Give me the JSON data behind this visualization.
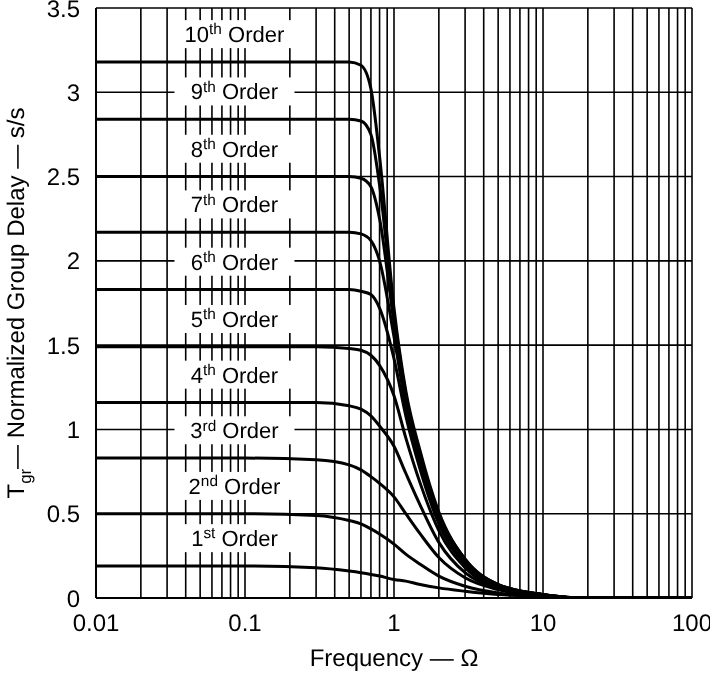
{
  "chart_data": {
    "type": "line",
    "xlabel": "Frequency — Ω",
    "ylabel": "T$_{gr}$— Normalized Group Delay — s/s",
    "x": [
      0.01,
      0.1,
      0.3,
      0.5,
      0.6,
      0.7,
      0.8,
      1,
      1.2,
      1.5,
      2,
      3,
      5,
      10,
      20,
      100
    ],
    "series": [
      {
        "name": "1$^{st}$ Order",
        "color": "#000000",
        "values": [
          0.19,
          0.19,
          0.18,
          0.16,
          0.15,
          0.14,
          0.13,
          0.11,
          0.1,
          0.08,
          0.06,
          0.04,
          0.02,
          0.01,
          0,
          0
        ]
      },
      {
        "name": "2$^{nd}$ Order",
        "color": "#000000",
        "values": [
          0.5,
          0.5,
          0.49,
          0.46,
          0.44,
          0.41,
          0.38,
          0.32,
          0.26,
          0.2,
          0.13,
          0.07,
          0.03,
          0.01,
          0,
          0
        ]
      },
      {
        "name": "3$^{rd}$ Order",
        "color": "#000000",
        "values": [
          0.83,
          0.83,
          0.82,
          0.79,
          0.76,
          0.72,
          0.68,
          0.6,
          0.5,
          0.38,
          0.24,
          0.12,
          0.05,
          0.01,
          0,
          0
        ]
      },
      {
        "name": "4$^{th}$ Order",
        "color": "#000000",
        "values": [
          1.16,
          1.16,
          1.16,
          1.14,
          1.12,
          1.08,
          1.02,
          0.9,
          0.74,
          0.55,
          0.33,
          0.15,
          0.06,
          0.01,
          0,
          0
        ]
      },
      {
        "name": "5$^{th}$ Order",
        "color": "#000000",
        "values": [
          1.49,
          1.49,
          1.49,
          1.48,
          1.47,
          1.44,
          1.38,
          1.2,
          0.95,
          0.68,
          0.4,
          0.18,
          0.06,
          0.01,
          0,
          0
        ]
      },
      {
        "name": "6$^{th}$ Order",
        "color": "#000000",
        "values": [
          1.83,
          1.83,
          1.83,
          1.83,
          1.82,
          1.8,
          1.72,
          1.42,
          1.08,
          0.76,
          0.44,
          0.2,
          0.07,
          0.02,
          0,
          0
        ]
      },
      {
        "name": "7$^{th}$ Order",
        "color": "#000000",
        "values": [
          2.17,
          2.17,
          2.17,
          2.17,
          2.16,
          2.12,
          2.0,
          1.55,
          1.14,
          0.8,
          0.47,
          0.21,
          0.07,
          0.02,
          0,
          0
        ]
      },
      {
        "name": "8$^{th}$ Order",
        "color": "#000000",
        "values": [
          2.5,
          2.5,
          2.5,
          2.5,
          2.49,
          2.44,
          2.25,
          1.63,
          1.18,
          0.83,
          0.49,
          0.22,
          0.08,
          0.02,
          0,
          0
        ]
      },
      {
        "name": "9$^{th}$ Order",
        "color": "#000000",
        "values": [
          2.84,
          2.84,
          2.84,
          2.84,
          2.83,
          2.75,
          2.45,
          1.68,
          1.21,
          0.85,
          0.5,
          0.23,
          0.08,
          0.02,
          0,
          0
        ]
      },
      {
        "name": "10$^{th}$ Order",
        "color": "#000000",
        "values": [
          3.18,
          3.18,
          3.18,
          3.18,
          3.16,
          3.02,
          2.62,
          1.72,
          1.23,
          0.87,
          0.51,
          0.23,
          0.08,
          0.02,
          0,
          0
        ]
      }
    ],
    "log": "x",
    "xlim": [
      0.01,
      100
    ],
    "xticks": [
      0.01,
      {
        "value": 0.02,
        "label": null
      },
      {
        "value": 0.03,
        "label": null
      },
      {
        "value": 0.04,
        "label": null
      },
      {
        "value": 0.05,
        "label": null
      },
      {
        "value": 0.06,
        "label": null
      },
      {
        "value": 0.07,
        "label": null
      },
      {
        "value": 0.08,
        "label": null
      },
      {
        "value": 0.09,
        "label": null
      },
      0.1,
      {
        "value": 0.2,
        "label": null
      },
      {
        "value": 0.3,
        "label": null
      },
      {
        "value": 0.4,
        "label": null
      },
      {
        "value": 0.5,
        "label": null
      },
      {
        "value": 0.6,
        "label": null
      },
      {
        "value": 0.7,
        "label": null
      },
      {
        "value": 0.8,
        "label": null
      },
      {
        "value": 0.9,
        "label": null
      },
      1,
      {
        "value": 2,
        "label": null
      },
      {
        "value": 3,
        "label": null
      },
      {
        "value": 4,
        "label": null
      },
      {
        "value": 5,
        "label": null
      },
      {
        "value": 6,
        "label": null
      },
      {
        "value": 7,
        "label": null
      },
      {
        "value": 8,
        "label": null
      },
      {
        "value": 9,
        "label": null
      },
      10,
      {
        "value": 20,
        "label": null
      },
      {
        "value": 30,
        "label": null
      },
      {
        "value": 40,
        "label": null
      },
      {
        "value": 50,
        "label": null
      },
      {
        "value": 60,
        "label": null
      },
      {
        "value": 70,
        "label": null
      },
      {
        "value": 80,
        "label": null
      },
      {
        "value": 90,
        "label": null
      },
      100
    ],
    "ylim": [
      0,
      3.5
    ],
    "yticks": [
      0,
      0.5,
      1,
      1.5,
      2,
      2.5,
      3,
      3.5
    ],
    "grid": true,
    "legend": false,
    "marker": "none",
    "line_style": "solid"
  }
}
